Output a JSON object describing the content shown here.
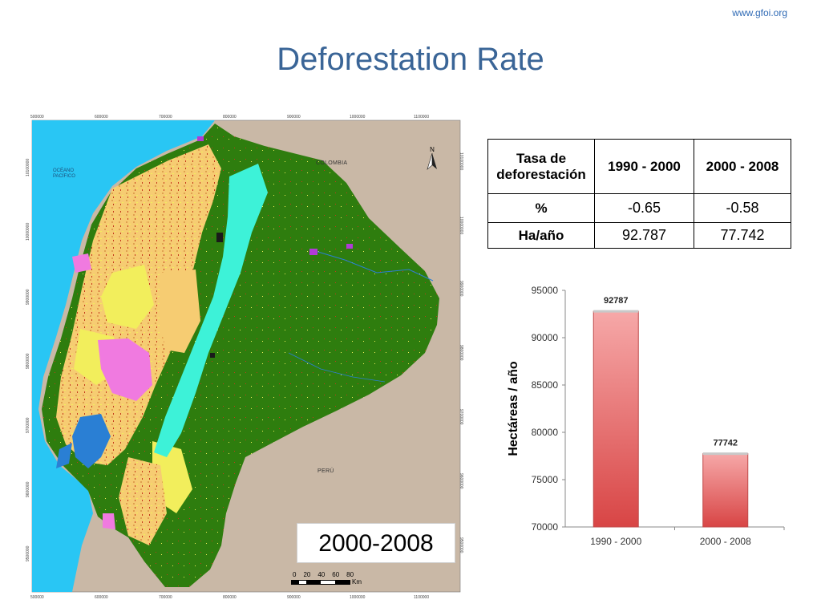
{
  "header": {
    "site_url": "www.gfoi.org",
    "title": "Deforestation Rate"
  },
  "map": {
    "period_label": "2000-2008",
    "country_labels": [
      "COLOMBIA",
      "PERÚ"
    ],
    "ocean_label": [
      "OCÉANO",
      "PACÍFICO"
    ],
    "north_label": "N",
    "coords_x": [
      "500000",
      "600000",
      "700000",
      "800000",
      "900000",
      "1000000",
      "1100000"
    ],
    "coords_y": [
      "10100000",
      "10000000",
      "9900000",
      "9800000",
      "9700000",
      "9600000",
      "9500000"
    ],
    "scale": {
      "ticks": [
        "0",
        "20",
        "40",
        "60",
        "80"
      ],
      "unit": "Km"
    },
    "colors": {
      "ocean": "#29c6f4",
      "land_bg": "#c9b8a6",
      "forest": "#2e7d0e",
      "agriculture": "#f6cc72",
      "pasture": "#f2ee5c",
      "paramo": "#3df2d8",
      "urban": "#f07ae0",
      "mosaic": "#8bc34a",
      "water": "#2a7fd4"
    }
  },
  "table": {
    "header": [
      "Tasa de deforestación",
      "1990 - 2000",
      "2000 - 2008"
    ],
    "rows": [
      [
        "%",
        "-0.65",
        "-0.58"
      ],
      [
        "Ha/año",
        "92.787",
        "77.742"
      ]
    ]
  },
  "chart_data": {
    "type": "bar",
    "categories": [
      "1990 - 2000",
      "2000 - 2008"
    ],
    "values": [
      92787,
      77742
    ],
    "data_labels": [
      "92787",
      "77742"
    ],
    "title": "",
    "xlabel": "",
    "ylabel": "Hectáreas / año",
    "ylim": [
      70000,
      95000
    ],
    "yticks": [
      70000,
      75000,
      80000,
      85000,
      90000,
      95000
    ],
    "grid": false,
    "legend": "none",
    "colors": {
      "bar_top": "#f6a8a8",
      "bar_bottom": "#d84545",
      "bar_edge": "#bf4a4a"
    }
  }
}
